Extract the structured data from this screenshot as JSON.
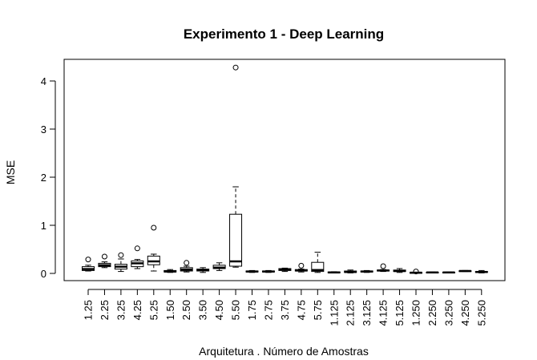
{
  "chart_data": {
    "type": "boxplot",
    "title": "Experimento 1 - Deep Learning",
    "xlabel": "Arquitetura . Número de Amostras",
    "ylabel": "MSE",
    "ylim": [
      -0.15,
      4.45
    ],
    "yticks": [
      0,
      1,
      2,
      3,
      4
    ],
    "grid": false,
    "categories": [
      "1.25",
      "2.25",
      "3.25",
      "4.25",
      "5.25",
      "1.50",
      "2.50",
      "3.50",
      "4.50",
      "5.50",
      "1.75",
      "2.75",
      "3.75",
      "4.75",
      "5.75",
      "1.125",
      "2.125",
      "3.125",
      "4.125",
      "5.125",
      "1.250",
      "2.250",
      "3.250",
      "4.250",
      "5.250"
    ],
    "boxes": [
      {
        "min": 0.05,
        "q1": 0.06,
        "median": 0.09,
        "q3": 0.14,
        "max": 0.17,
        "outliers": [
          0.29
        ]
      },
      {
        "min": 0.12,
        "q1": 0.14,
        "median": 0.17,
        "q3": 0.21,
        "max": 0.24,
        "outliers": [
          0.35
        ]
      },
      {
        "min": 0.04,
        "q1": 0.09,
        "median": 0.14,
        "q3": 0.19,
        "max": 0.3,
        "outliers": [
          0.38
        ]
      },
      {
        "min": 0.1,
        "q1": 0.14,
        "median": 0.21,
        "q3": 0.26,
        "max": 0.29,
        "outliers": [
          0.52
        ]
      },
      {
        "min": 0.05,
        "q1": 0.18,
        "median": 0.25,
        "q3": 0.36,
        "max": 0.4,
        "outliers": [
          0.95
        ]
      },
      {
        "min": 0.02,
        "q1": 0.03,
        "median": 0.04,
        "q3": 0.06,
        "max": 0.08,
        "outliers": []
      },
      {
        "min": 0.03,
        "q1": 0.05,
        "median": 0.08,
        "q3": 0.12,
        "max": 0.15,
        "outliers": [
          0.22
        ]
      },
      {
        "min": 0.02,
        "q1": 0.05,
        "median": 0.07,
        "q3": 0.09,
        "max": 0.12,
        "outliers": []
      },
      {
        "min": 0.06,
        "q1": 0.1,
        "median": 0.12,
        "q3": 0.17,
        "max": 0.22,
        "outliers": []
      },
      {
        "min": 0.13,
        "q1": 0.15,
        "median": 0.25,
        "q3": 1.23,
        "max": 1.8,
        "outliers": [
          4.28
        ]
      },
      {
        "min": 0.02,
        "q1": 0.03,
        "median": 0.04,
        "q3": 0.05,
        "max": 0.06,
        "outliers": []
      },
      {
        "min": 0.02,
        "q1": 0.03,
        "median": 0.04,
        "q3": 0.05,
        "max": 0.06,
        "outliers": []
      },
      {
        "min": 0.04,
        "q1": 0.06,
        "median": 0.08,
        "q3": 0.1,
        "max": 0.11,
        "outliers": []
      },
      {
        "min": 0.03,
        "q1": 0.05,
        "median": 0.06,
        "q3": 0.08,
        "max": 0.09,
        "outliers": [
          0.16
        ]
      },
      {
        "min": 0.02,
        "q1": 0.04,
        "median": 0.07,
        "q3": 0.23,
        "max": 0.44,
        "outliers": []
      },
      {
        "min": 0.01,
        "q1": 0.015,
        "median": 0.02,
        "q3": 0.03,
        "max": 0.035,
        "outliers": []
      },
      {
        "min": 0.01,
        "q1": 0.02,
        "median": 0.03,
        "q3": 0.05,
        "max": 0.07,
        "outliers": []
      },
      {
        "min": 0.02,
        "q1": 0.03,
        "median": 0.04,
        "q3": 0.05,
        "max": 0.06,
        "outliers": []
      },
      {
        "min": 0.04,
        "q1": 0.05,
        "median": 0.06,
        "q3": 0.07,
        "max": 0.08,
        "outliers": [
          0.15
        ]
      },
      {
        "min": 0.02,
        "q1": 0.04,
        "median": 0.05,
        "q3": 0.07,
        "max": 0.1,
        "outliers": []
      },
      {
        "min": 0.005,
        "q1": 0.01,
        "median": 0.015,
        "q3": 0.02,
        "max": 0.025,
        "outliers": [
          0.04
        ]
      },
      {
        "min": 0.01,
        "q1": 0.015,
        "median": 0.02,
        "q3": 0.025,
        "max": 0.03,
        "outliers": []
      },
      {
        "min": 0.01,
        "q1": 0.015,
        "median": 0.02,
        "q3": 0.025,
        "max": 0.03,
        "outliers": []
      },
      {
        "min": 0.04,
        "q1": 0.045,
        "median": 0.05,
        "q3": 0.055,
        "max": 0.06,
        "outliers": []
      },
      {
        "min": 0.01,
        "q1": 0.02,
        "median": 0.03,
        "q3": 0.04,
        "max": 0.06,
        "outliers": []
      }
    ]
  }
}
